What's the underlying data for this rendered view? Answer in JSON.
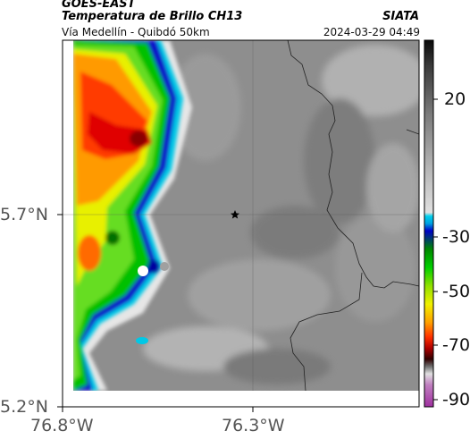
{
  "header": {
    "satellite": "GOES-EAST",
    "product": "Temperatura de Brillo CH13",
    "route": "Vía Medellín - Quibdó 50km",
    "org": "SIATA",
    "datetime": "2024-03-29 04:49"
  },
  "map": {
    "lat_ticks": [
      "5.7°N",
      "5.2°N"
    ],
    "lon_ticks": [
      "76.8°W",
      "76.3°W"
    ],
    "marker": "star-marker",
    "gridlines": true
  },
  "colorbar": {
    "labels": [
      "20",
      "-30",
      "-50",
      "-70",
      "-90"
    ],
    "colors": {
      "gray_top": "#1a1a1a",
      "gray_mid": "#d8d8d8",
      "cyan": "#00c8e6",
      "blue": "#0000cc",
      "green": "#00c800",
      "yellow": "#f0f000",
      "orange": "#ff8c00",
      "red": "#e00000",
      "dark_red": "#500000",
      "magenta": "#b040b0"
    }
  }
}
